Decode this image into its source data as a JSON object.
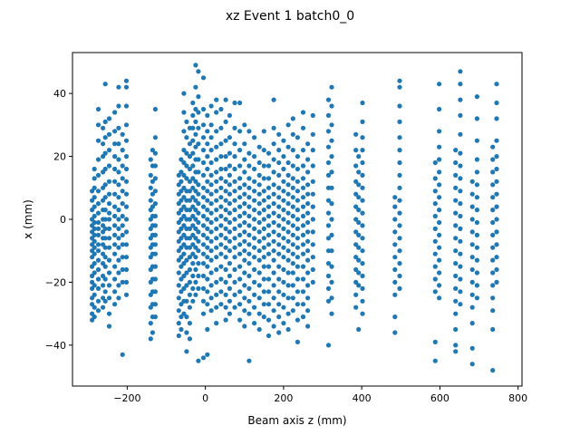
{
  "chart_data": {
    "type": "scatter",
    "title": "xz Event 1 batch0_0",
    "xlabel": "Beam axis z (mm)",
    "ylabel": "x (mm)",
    "xlim": [
      -340,
      810
    ],
    "ylim": [
      -53,
      53
    ],
    "xticks": [
      -200,
      0,
      200,
      400,
      600,
      800
    ],
    "yticks": [
      -40,
      -20,
      0,
      20,
      40
    ],
    "grid": false,
    "marker_color": "#1f77b4",
    "columns": [
      {
        "z": -290,
        "x": [
          -32,
          -30,
          -27,
          -25,
          -22,
          -20,
          -18,
          -15,
          -12,
          -10,
          -8,
          -6,
          -4,
          -2,
          0,
          3,
          6,
          9
        ]
      },
      {
        "z": -284,
        "x": [
          -31,
          -28,
          -24,
          -21,
          -17,
          -14,
          -11,
          -9,
          -7,
          -5,
          -3,
          -1,
          1,
          4,
          7,
          10,
          13,
          16
        ]
      },
      {
        "z": -274,
        "x": [
          -29,
          -26,
          -22,
          -19,
          -16,
          -13,
          -10,
          -8,
          -5,
          -3,
          -1,
          2,
          5,
          9,
          14,
          19,
          25,
          30,
          35
        ]
      },
      {
        "z": -262,
        "x": [
          -28,
          -25,
          -21,
          -18,
          -14,
          -11,
          -8,
          -6,
          -4,
          -2,
          0,
          3,
          6,
          10,
          15,
          20,
          24,
          29
        ]
      },
      {
        "z": -256,
        "x": [
          -26,
          -23,
          -19,
          -15,
          -12,
          -9,
          -6,
          -3,
          0,
          3,
          7,
          11,
          16,
          21,
          26,
          31,
          43
        ]
      },
      {
        "z": -246,
        "x": [
          -34,
          -30,
          -25,
          -21,
          -17,
          -13,
          -9,
          -6,
          -3,
          0,
          2,
          5,
          8,
          12,
          17,
          22,
          27,
          32
        ]
      },
      {
        "z": -232,
        "x": [
          -27,
          -23,
          -19,
          -15,
          -11,
          -8,
          -5,
          -2,
          1,
          4,
          8,
          12,
          16,
          20,
          24,
          28,
          34
        ]
      },
      {
        "z": -222,
        "x": [
          -25,
          -21,
          -17,
          -13,
          -9,
          -6,
          -3,
          0,
          3,
          7,
          11,
          15,
          19,
          24,
          29,
          36,
          42
        ]
      },
      {
        "z": -212,
        "x": [
          -43,
          -20,
          -16,
          -12,
          -8,
          -5,
          -2,
          1,
          5,
          9,
          13,
          17,
          22,
          27
        ]
      },
      {
        "z": -202,
        "x": [
          -24,
          -20,
          -16,
          -12,
          -8,
          -4,
          0,
          4,
          8,
          12,
          16,
          20,
          25,
          30,
          36,
          42,
          44
        ]
      },
      {
        "z": -140,
        "x": [
          -38,
          -33,
          -28,
          -24,
          -20,
          -16,
          -12,
          -9,
          -6,
          -3,
          0,
          3,
          6,
          10,
          14,
          19
        ]
      },
      {
        "z": -135,
        "x": [
          -36,
          -31,
          -27,
          -23,
          -19,
          -15,
          -11,
          -8,
          -5,
          -2,
          1,
          4,
          8,
          12,
          17,
          22
        ]
      },
      {
        "z": -128,
        "x": [
          -31,
          -27,
          -23,
          -19,
          -15,
          -11,
          -8,
          -5,
          -2,
          1,
          5,
          9,
          13,
          17,
          21,
          26,
          35
        ]
      },
      {
        "z": -68,
        "x": [
          -37,
          -33,
          -29,
          -25,
          -21,
          -17,
          -13,
          -10,
          -7,
          -4,
          -1,
          2,
          5,
          8,
          11,
          14
        ]
      },
      {
        "z": -62,
        "x": [
          -35,
          -31,
          -27,
          -23,
          -19,
          -15,
          -12,
          -9,
          -6,
          -3,
          0,
          3,
          6,
          9,
          12,
          15,
          19
        ]
      },
      {
        "z": -55,
        "x": [
          -30,
          -26,
          -22,
          -18,
          -14,
          -11,
          -8,
          -5,
          -2,
          1,
          4,
          7,
          10,
          14,
          18,
          22,
          28,
          34,
          40
        ]
      },
      {
        "z": -48,
        "x": [
          -42,
          -36,
          -31,
          -26,
          -21,
          -17,
          -13,
          -9,
          -6,
          -3,
          0,
          3,
          6,
          9,
          13,
          17,
          21,
          26,
          31
        ]
      },
      {
        "z": -40,
        "x": [
          -38,
          -33,
          -28,
          -24,
          -20,
          -16,
          -12,
          -9,
          -6,
          -3,
          0,
          3,
          6,
          9,
          12,
          16,
          20,
          24,
          29
        ]
      },
      {
        "z": -32,
        "x": [
          -26,
          -22,
          -18,
          -14,
          -11,
          -8,
          -5,
          -2,
          1,
          4,
          7,
          10,
          13,
          17,
          21,
          25,
          29,
          33,
          37
        ]
      },
      {
        "z": -25,
        "x": [
          -24,
          -20,
          -16,
          -12,
          -9,
          -6,
          -3,
          0,
          3,
          6,
          9,
          12,
          15,
          19,
          23,
          27,
          31,
          35,
          42,
          49
        ]
      },
      {
        "z": -18,
        "x": [
          -45,
          -22,
          -18,
          -14,
          -10,
          -7,
          -4,
          -1,
          2,
          5,
          8,
          11,
          15,
          19,
          24,
          29,
          34,
          39,
          47
        ]
      },
      {
        "z": -5,
        "x": [
          -44,
          -30,
          -26,
          -22,
          -18,
          -14,
          -11,
          -8,
          -5,
          -2,
          1,
          4,
          7,
          10,
          14,
          18,
          22,
          26,
          30,
          35,
          45
        ]
      },
      {
        "z": 5,
        "x": [
          -43,
          -35,
          -27,
          -23,
          -19,
          -15,
          -12,
          -9,
          -6,
          -3,
          0,
          3,
          6,
          9,
          12,
          16,
          20,
          24,
          28,
          33
        ]
      },
      {
        "z": 15,
        "x": [
          -29,
          -25,
          -21,
          -17,
          -13,
          -10,
          -7,
          -4,
          -1,
          2,
          5,
          8,
          11,
          14,
          18,
          22,
          26,
          30,
          36
        ]
      },
      {
        "z": 28,
        "x": [
          -33,
          -28,
          -24,
          -20,
          -16,
          -12,
          -9,
          -6,
          -3,
          0,
          3,
          6,
          9,
          12,
          15,
          19,
          23,
          28,
          34,
          38
        ]
      },
      {
        "z": 40,
        "x": [
          -27,
          -23,
          -19,
          -15,
          -11,
          -8,
          -5,
          -2,
          1,
          4,
          7,
          10,
          13,
          16,
          20,
          24,
          29,
          35
        ]
      },
      {
        "z": 52,
        "x": [
          -32,
          -28,
          -24,
          -20,
          -16,
          -12,
          -9,
          -6,
          -3,
          0,
          3,
          6,
          9,
          12,
          16,
          20,
          25,
          31,
          38
        ]
      },
      {
        "z": 62,
        "x": [
          -30,
          -26,
          -22,
          -18,
          -14,
          -10,
          -7,
          -4,
          -1,
          2,
          5,
          8,
          11,
          14,
          17,
          21,
          26,
          33
        ]
      },
      {
        "z": 75,
        "x": [
          -28,
          -24,
          -20,
          -16,
          -12,
          -9,
          -6,
          -3,
          0,
          3,
          6,
          9,
          12,
          16,
          20,
          24,
          29,
          37
        ]
      },
      {
        "z": 88,
        "x": [
          -32,
          -27,
          -23,
          -19,
          -15,
          -11,
          -8,
          -5,
          -2,
          1,
          4,
          7,
          10,
          13,
          17,
          22,
          28,
          37
        ]
      },
      {
        "z": 100,
        "x": [
          -34,
          -29,
          -25,
          -21,
          -17,
          -13,
          -10,
          -7,
          -4,
          -1,
          2,
          5,
          8,
          11,
          15,
          19,
          24,
          30
        ]
      },
      {
        "z": 112,
        "x": [
          -45,
          -30,
          -26,
          -22,
          -18,
          -14,
          -11,
          -8,
          -5,
          -2,
          1,
          4,
          7,
          10,
          13,
          17,
          21,
          28
        ]
      },
      {
        "z": 125,
        "x": [
          -33,
          -28,
          -24,
          -20,
          -16,
          -12,
          -9,
          -6,
          -3,
          0,
          3,
          6,
          9,
          12,
          16,
          20,
          26
        ]
      },
      {
        "z": 138,
        "x": [
          -35,
          -30,
          -25,
          -21,
          -17,
          -13,
          -10,
          -7,
          -4,
          -1,
          2,
          5,
          8,
          11,
          14,
          18,
          23
        ]
      },
      {
        "z": 150,
        "x": [
          -31,
          -27,
          -23,
          -19,
          -15,
          -12,
          -9,
          -6,
          -3,
          0,
          3,
          6,
          9,
          13,
          17,
          22,
          28
        ]
      },
      {
        "z": 162,
        "x": [
          -37,
          -32,
          -27,
          -23,
          -19,
          -15,
          -11,
          -8,
          -5,
          -2,
          1,
          4,
          7,
          10,
          13,
          17,
          21
        ]
      },
      {
        "z": 175,
        "x": [
          -34,
          -29,
          -25,
          -21,
          -17,
          -13,
          -10,
          -7,
          -4,
          -1,
          2,
          5,
          8,
          11,
          15,
          19,
          24,
          29,
          38
        ]
      },
      {
        "z": 188,
        "x": [
          -36,
          -31,
          -27,
          -23,
          -19,
          -15,
          -11,
          -8,
          -5,
          -2,
          1,
          4,
          7,
          10,
          14,
          18,
          22,
          27
        ]
      },
      {
        "z": 200,
        "x": [
          -33,
          -28,
          -24,
          -20,
          -16,
          -12,
          -9,
          -6,
          -3,
          0,
          3,
          6,
          9,
          12,
          16,
          20,
          25
        ]
      },
      {
        "z": 212,
        "x": [
          -35,
          -30,
          -25,
          -21,
          -17,
          -13,
          -10,
          -7,
          -4,
          -1,
          2,
          5,
          8,
          11,
          14,
          18,
          23,
          30
        ]
      },
      {
        "z": 224,
        "x": [
          -29,
          -25,
          -21,
          -17,
          -14,
          -11,
          -8,
          -5,
          -2,
          1,
          4,
          7,
          10,
          13,
          17,
          22,
          27,
          32
        ]
      },
      {
        "z": 236,
        "x": [
          -39,
          -32,
          -27,
          -23,
          -19,
          -15,
          -12,
          -9,
          -6,
          -3,
          0,
          3,
          6,
          9,
          12,
          16,
          20,
          26
        ]
      },
      {
        "z": 250,
        "x": [
          -31,
          -27,
          -23,
          -19,
          -15,
          -11,
          -8,
          -5,
          -2,
          1,
          4,
          7,
          10,
          13,
          17,
          22,
          29,
          34
        ]
      },
      {
        "z": 262,
        "x": [
          -34,
          -29,
          -25,
          -21,
          -17,
          -13,
          -10,
          -7,
          -4,
          -1,
          2,
          5,
          8,
          11,
          15,
          19,
          24
        ]
      },
      {
        "z": 275,
        "x": [
          -20,
          -16,
          -12,
          -8,
          -4,
          0,
          4,
          8,
          12,
          17,
          22,
          27,
          33
        ]
      },
      {
        "z": 315,
        "x": [
          -40,
          -26,
          -22,
          -18,
          -14,
          -10,
          -6,
          -2,
          2,
          6,
          10,
          14,
          18,
          23,
          28,
          33,
          38
        ]
      },
      {
        "z": 323,
        "x": [
          -30,
          -25,
          -20,
          -15,
          -10,
          -5,
          0,
          5,
          10,
          15,
          20,
          25,
          30,
          36,
          42
        ]
      },
      {
        "z": 385,
        "x": [
          -28,
          -24,
          -20,
          -16,
          -12,
          -8,
          -4,
          0,
          4,
          8,
          12,
          17,
          22,
          27
        ]
      },
      {
        "z": 392,
        "x": [
          -35,
          -21,
          -17,
          -13,
          -9,
          -5,
          -1,
          3,
          7,
          11,
          15,
          20
        ]
      },
      {
        "z": 402,
        "x": [
          -30,
          -26,
          -22,
          -18,
          -14,
          -10,
          -6,
          -2,
          2,
          6,
          10,
          14,
          18,
          22,
          26,
          31,
          37
        ]
      },
      {
        "z": 485,
        "x": [
          -36,
          -31,
          -24,
          -20,
          -16,
          -12,
          -8,
          -4,
          0,
          4,
          7
        ]
      },
      {
        "z": 497,
        "x": [
          -22,
          -18,
          -14,
          -10,
          -6,
          -2,
          2,
          6,
          10,
          14,
          18,
          22,
          26,
          31,
          36,
          42,
          44
        ]
      },
      {
        "z": 588,
        "x": [
          -45,
          -39,
          -23,
          -19,
          -15,
          -11,
          -7,
          -3,
          1,
          5,
          9,
          13,
          18
        ]
      },
      {
        "z": 598,
        "x": [
          -25,
          -21,
          -17,
          -13,
          -9,
          -5,
          -1,
          3,
          7,
          11,
          15,
          19,
          23,
          28,
          35,
          43
        ]
      },
      {
        "z": 640,
        "x": [
          -42,
          -40,
          -35,
          -30,
          -26,
          -22,
          -18,
          -14,
          -10,
          -6,
          -2,
          2,
          6,
          10,
          14,
          18,
          22
        ]
      },
      {
        "z": 652,
        "x": [
          -27,
          -23,
          -19,
          -15,
          -11,
          -7,
          -3,
          1,
          5,
          9,
          13,
          17,
          21,
          27,
          33,
          38,
          43,
          47
        ]
      },
      {
        "z": 683,
        "x": [
          -46,
          -41,
          -33,
          -28,
          -24,
          -20,
          -16,
          -12,
          -8,
          -4,
          0,
          4,
          8,
          12
        ]
      },
      {
        "z": 695,
        "x": [
          -25,
          -21,
          -17,
          -13,
          -9,
          -5,
          -1,
          3,
          7,
          11,
          15,
          19,
          25,
          32,
          39
        ]
      },
      {
        "z": 735,
        "x": [
          -48,
          -35,
          -29,
          -25,
          -21,
          -17,
          -13,
          -9,
          -5,
          -1,
          3,
          7,
          11,
          15,
          19,
          23
        ]
      },
      {
        "z": 745,
        "x": [
          -20,
          -16,
          -12,
          -8,
          -4,
          0,
          4,
          8,
          12,
          16,
          20,
          25,
          32,
          37,
          43
        ]
      }
    ]
  }
}
